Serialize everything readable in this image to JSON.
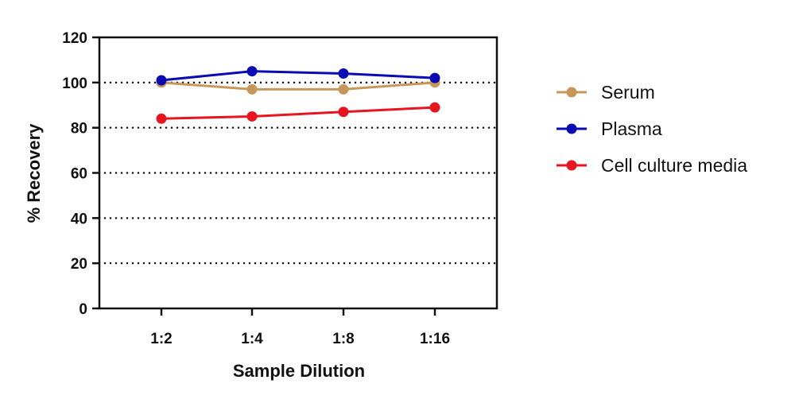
{
  "chart_data": {
    "type": "line",
    "title": "",
    "xlabel": "Sample Dilution",
    "ylabel": "% Recovery",
    "categories": [
      "1:2",
      "1:4",
      "1:8",
      "1:16"
    ],
    "ylim": [
      0,
      120
    ],
    "yticks": [
      0,
      20,
      40,
      60,
      80,
      100,
      120
    ],
    "grid": "horizontal dotted",
    "legend_position": "right",
    "series": [
      {
        "name": "Serum",
        "color": "#C8965A",
        "values": [
          100,
          97,
          97,
          100
        ]
      },
      {
        "name": "Plasma",
        "color": "#0A0AB4",
        "values": [
          101,
          105,
          104,
          102
        ]
      },
      {
        "name": "Cell culture media",
        "color": "#E8141E",
        "values": [
          84,
          85,
          87,
          89
        ]
      }
    ]
  }
}
